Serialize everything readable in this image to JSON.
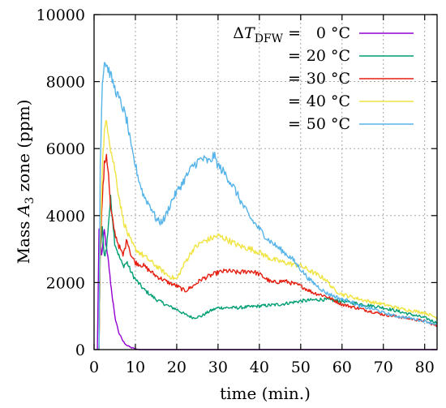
{
  "chart_data": {
    "type": "line",
    "xlabel": "time (min.)",
    "ylabel": "Mass A3 zone (ppm)",
    "ylabel_parts": {
      "pre": "Mass ",
      "var": "A",
      "sub": "3",
      "post": " zone (ppm)"
    },
    "xlim": [
      0,
      83
    ],
    "ylim": [
      0,
      10000
    ],
    "xticks": [
      0,
      10,
      20,
      30,
      40,
      50,
      60,
      70,
      80
    ],
    "yticks": [
      0,
      2000,
      4000,
      6000,
      8000,
      10000
    ],
    "grid": true,
    "legend_position": "top-right",
    "legend_title": {
      "symbol": "Δ",
      "var": "T",
      "sub": "DFW",
      "eq": " ="
    },
    "series": [
      {
        "name": "0 °C",
        "label": "0 °C",
        "color": "#9400d3",
        "points": [
          [
            0.8,
            0
          ],
          [
            1.2,
            3600
          ],
          [
            1.8,
            2800
          ],
          [
            2.5,
            3550
          ],
          [
            3,
            3000
          ],
          [
            3.5,
            2600
          ],
          [
            4,
            2000
          ],
          [
            4.5,
            1500
          ],
          [
            5,
            1000
          ],
          [
            6,
            500
          ],
          [
            7,
            250
          ],
          [
            8,
            120
          ],
          [
            9,
            60
          ],
          [
            10,
            20
          ],
          [
            11,
            0
          ],
          [
            12,
            0
          ],
          [
            83,
            0
          ]
        ]
      },
      {
        "name": "20 °C",
        "label": "20 °C",
        "color": "#009e73",
        "points": [
          [
            1.2,
            0
          ],
          [
            1.5,
            3000
          ],
          [
            2,
            3600
          ],
          [
            2.5,
            2800
          ],
          [
            3,
            3000
          ],
          [
            3.5,
            3800
          ],
          [
            4,
            4500
          ],
          [
            4.5,
            3900
          ],
          [
            5,
            3200
          ],
          [
            6,
            2800
          ],
          [
            7,
            2500
          ],
          [
            8,
            2600
          ],
          [
            9,
            2300
          ],
          [
            10,
            2100
          ],
          [
            12,
            1800
          ],
          [
            15,
            1500
          ],
          [
            18,
            1300
          ],
          [
            20,
            1200
          ],
          [
            22,
            1050
          ],
          [
            24,
            950
          ],
          [
            26,
            1000
          ],
          [
            28,
            1150
          ],
          [
            30,
            1250
          ],
          [
            35,
            1250
          ],
          [
            40,
            1300
          ],
          [
            45,
            1350
          ],
          [
            50,
            1450
          ],
          [
            55,
            1500
          ],
          [
            60,
            1450
          ],
          [
            65,
            1350
          ],
          [
            70,
            1250
          ],
          [
            75,
            1100
          ],
          [
            80,
            950
          ],
          [
            83,
            800
          ]
        ]
      },
      {
        "name": "30 °C",
        "label": "30 °C",
        "color": "#e51e10",
        "points": [
          [
            1.2,
            0
          ],
          [
            1.5,
            3000
          ],
          [
            2,
            4500
          ],
          [
            2.5,
            5500
          ],
          [
            3,
            5850
          ],
          [
            3.5,
            5200
          ],
          [
            4,
            4200
          ],
          [
            5,
            3500
          ],
          [
            6,
            3100
          ],
          [
            7,
            2800
          ],
          [
            8,
            3300
          ],
          [
            9,
            2800
          ],
          [
            10,
            2600
          ],
          [
            12,
            2500
          ],
          [
            15,
            2200
          ],
          [
            18,
            2000
          ],
          [
            20,
            1900
          ],
          [
            22,
            1750
          ],
          [
            24,
            1900
          ],
          [
            26,
            2100
          ],
          [
            28,
            2200
          ],
          [
            30,
            2300
          ],
          [
            32,
            2350
          ],
          [
            35,
            2300
          ],
          [
            38,
            2350
          ],
          [
            40,
            2250
          ],
          [
            43,
            2000
          ],
          [
            46,
            2050
          ],
          [
            50,
            1900
          ],
          [
            53,
            1700
          ],
          [
            56,
            1600
          ],
          [
            60,
            1350
          ],
          [
            65,
            1200
          ],
          [
            70,
            1050
          ],
          [
            75,
            950
          ],
          [
            80,
            850
          ],
          [
            83,
            700
          ]
        ]
      },
      {
        "name": "40 °C",
        "label": "40 °C",
        "color": "#f0e442",
        "points": [
          [
            1.2,
            0
          ],
          [
            1.5,
            3200
          ],
          [
            2,
            5500
          ],
          [
            2.5,
            6500
          ],
          [
            3,
            6800
          ],
          [
            3.5,
            6500
          ],
          [
            4,
            6000
          ],
          [
            5,
            5400
          ],
          [
            6,
            4600
          ],
          [
            7,
            3900
          ],
          [
            8,
            3500
          ],
          [
            9,
            3200
          ],
          [
            10,
            3000
          ],
          [
            12,
            2800
          ],
          [
            15,
            2500
          ],
          [
            18,
            2200
          ],
          [
            20,
            2100
          ],
          [
            22,
            2600
          ],
          [
            24,
            3000
          ],
          [
            26,
            3200
          ],
          [
            28,
            3300
          ],
          [
            30,
            3400
          ],
          [
            32,
            3300
          ],
          [
            35,
            3100
          ],
          [
            38,
            3000
          ],
          [
            40,
            2900
          ],
          [
            43,
            2700
          ],
          [
            46,
            2600
          ],
          [
            50,
            2500
          ],
          [
            53,
            2300
          ],
          [
            56,
            2100
          ],
          [
            58,
            1800
          ],
          [
            60,
            1650
          ],
          [
            63,
            1550
          ],
          [
            66,
            1450
          ],
          [
            70,
            1350
          ],
          [
            75,
            1200
          ],
          [
            80,
            1100
          ],
          [
            83,
            950
          ]
        ]
      },
      {
        "name": "50 °C",
        "label": "50 °C",
        "color": "#56b4e9",
        "points": [
          [
            1.2,
            0
          ],
          [
            1.5,
            5500
          ],
          [
            2,
            8000
          ],
          [
            2.5,
            8600
          ],
          [
            3,
            8500
          ],
          [
            4,
            8200
          ],
          [
            5,
            7800
          ],
          [
            6,
            7500
          ],
          [
            7,
            7200
          ],
          [
            8,
            6800
          ],
          [
            9,
            6000
          ],
          [
            10,
            5500
          ],
          [
            11,
            5000
          ],
          [
            12,
            4600
          ],
          [
            13,
            4400
          ],
          [
            14,
            4200
          ],
          [
            15,
            3900
          ],
          [
            16,
            3800
          ],
          [
            17,
            3900
          ],
          [
            18,
            4200
          ],
          [
            19,
            4500
          ],
          [
            20,
            4700
          ],
          [
            22,
            5100
          ],
          [
            24,
            5500
          ],
          [
            26,
            5700
          ],
          [
            28,
            5600
          ],
          [
            29,
            5800
          ],
          [
            30,
            5500
          ],
          [
            32,
            5200
          ],
          [
            34,
            4800
          ],
          [
            36,
            4300
          ],
          [
            38,
            3900
          ],
          [
            40,
            3600
          ],
          [
            42,
            3300
          ],
          [
            44,
            3100
          ],
          [
            46,
            2900
          ],
          [
            48,
            2700
          ],
          [
            50,
            2400
          ],
          [
            52,
            2100
          ],
          [
            54,
            1900
          ],
          [
            56,
            1700
          ],
          [
            58,
            1600
          ],
          [
            60,
            1500
          ],
          [
            62,
            1450
          ],
          [
            64,
            1300
          ],
          [
            66,
            1250
          ],
          [
            68,
            1200
          ],
          [
            70,
            1100
          ],
          [
            73,
            1000
          ],
          [
            76,
            950
          ],
          [
            80,
            850
          ],
          [
            83,
            750
          ]
        ]
      }
    ]
  }
}
